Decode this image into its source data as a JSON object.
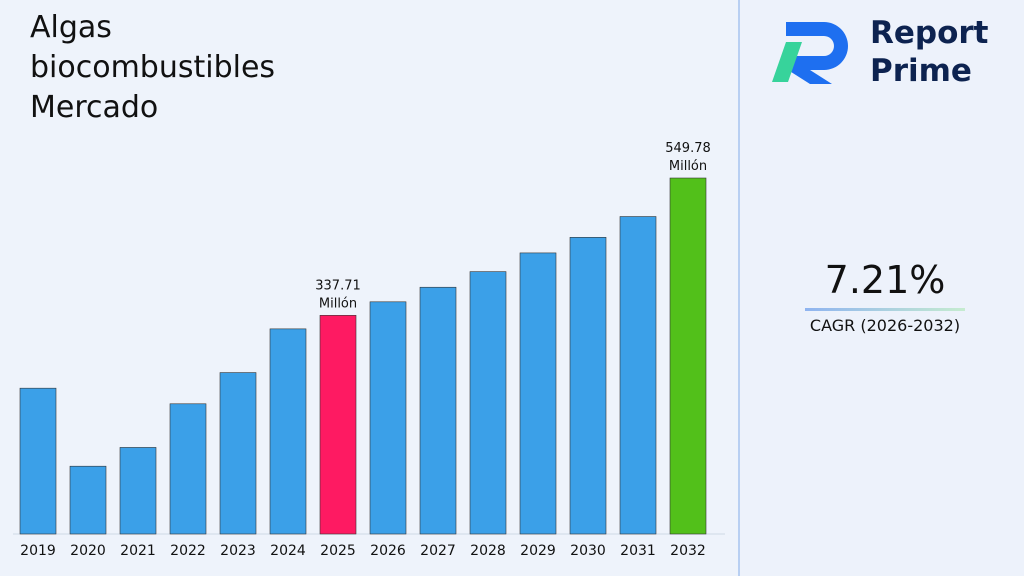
{
  "chart_data": {
    "type": "bar",
    "title": "Algas biocombustibles Mercado",
    "categories": [
      "2019",
      "2020",
      "2021",
      "2022",
      "2023",
      "2024",
      "2025",
      "2026",
      "2027",
      "2028",
      "2029",
      "2030",
      "2031",
      "2032"
    ],
    "values": [
      225.2,
      104.7,
      133.7,
      201.1,
      249.3,
      316.8,
      337.71,
      358.6,
      381.1,
      405.2,
      434.1,
      458.2,
      490.3,
      549.78
    ],
    "value_labels": [
      null,
      null,
      null,
      null,
      null,
      null,
      "337.71 Millón",
      null,
      null,
      null,
      null,
      null,
      null,
      "549.78 Millón"
    ],
    "colors": [
      "#3ba0e8",
      "#3ba0e8",
      "#3ba0e8",
      "#3ba0e8",
      "#3ba0e8",
      "#3ba0e8",
      "#fe1a62",
      "#3ba0e8",
      "#3ba0e8",
      "#3ba0e8",
      "#3ba0e8",
      "#3ba0e8",
      "#3ba0e8",
      "#52c01a"
    ],
    "ylim": [
      0,
      600
    ]
  },
  "brand": "Report Prime",
  "cagr": {
    "value": "7.21%",
    "label": "CAGR (2026-2032)"
  }
}
